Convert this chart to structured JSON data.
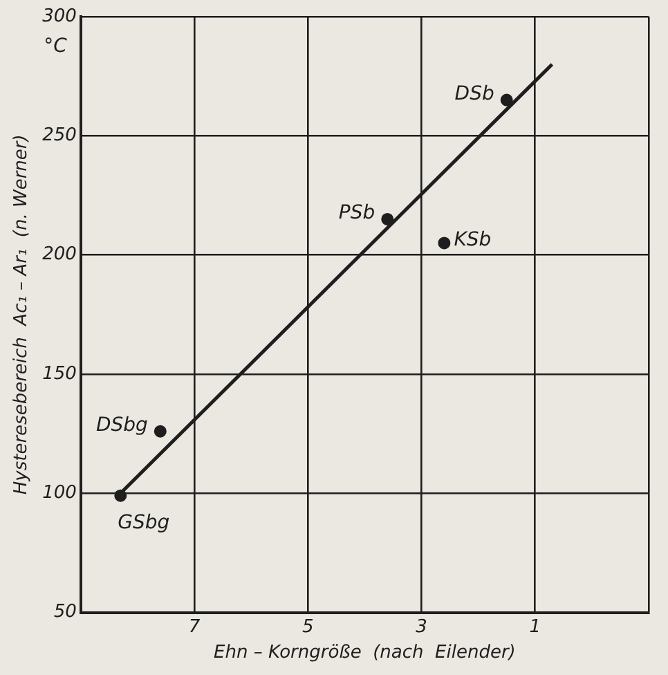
{
  "chart_data": {
    "type": "scatter",
    "xlabel": "Ehn – Korngröße  (nach  Eilender)",
    "ylabel": "Hysteresebereich  Ac₁ – Ar₁  (n. Werner)",
    "xlim": [
      9,
      -1
    ],
    "xticks": [
      {
        "value": 9,
        "label": null
      },
      7,
      5,
      3,
      1,
      {
        "value": -1,
        "label": null
      }
    ],
    "ylim": [
      50,
      300
    ],
    "yticks": [
      50,
      100,
      150,
      200,
      250,
      300
    ],
    "grid": true,
    "series": [
      {
        "type": "scatter",
        "marker": "circle",
        "color": "#1e1e1e",
        "x": [
          1.5,
          3.6,
          2.6,
          7.6,
          8.3
        ],
        "values": [
          265,
          215,
          205,
          126,
          99
        ]
      },
      {
        "type": "line",
        "marker": "none",
        "color": "#1e1e1e",
        "x": [
          8.3,
          0.7
        ],
        "values": [
          100,
          280
        ]
      }
    ],
    "annotations": [
      "°C",
      {
        "text": "DSb",
        "x": 1.5,
        "y": 265
      },
      {
        "text": "PSb",
        "x": 3.6,
        "y": 215
      },
      {
        "text": "KSb",
        "x": 2.6,
        "y": 205
      },
      {
        "text": "DSbg",
        "x": 7.6,
        "y": 126
      },
      {
        "text": "GSbg",
        "x": 8.3,
        "y": 99
      }
    ]
  }
}
